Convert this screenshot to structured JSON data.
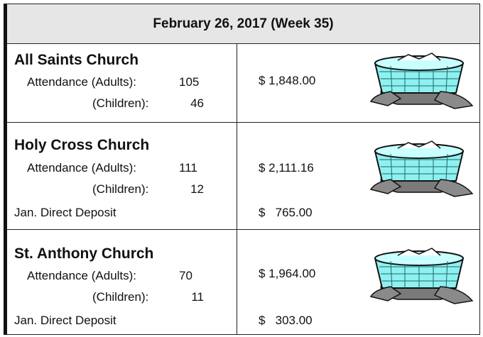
{
  "header": {
    "title": "February 26, 2017 (Week 35)"
  },
  "churches": [
    {
      "name": "All Saints Church",
      "adults_label": "Attendance (Adults):",
      "adults": 105,
      "children_label": "(Children):",
      "children": 46,
      "offering": "$ 1,848.00"
    },
    {
      "name": "Holy Cross Church",
      "adults_label": "Attendance (Adults):",
      "adults": 111,
      "children_label": "(Children):",
      "children": 12,
      "offering": "$ 2,111.16",
      "deposit_label": "Jan. Direct Deposit",
      "deposit": "$   765.00"
    },
    {
      "name": "St. Anthony Church",
      "adults_label": "Attendance (Adults):",
      "adults": 70,
      "children_label": "(Children):",
      "children": 11,
      "offering": "$ 1,964.00",
      "deposit_label": "Jan. Direct Deposit",
      "deposit": "$   303.00"
    }
  ]
}
